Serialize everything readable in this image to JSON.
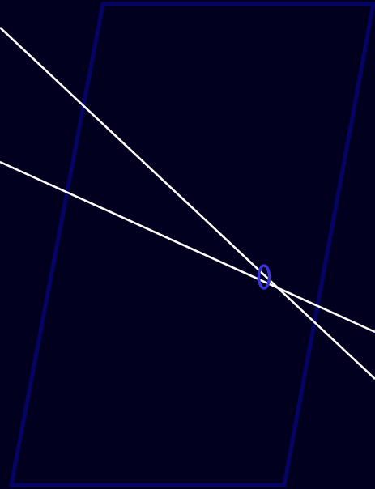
{
  "scene": {
    "background_color": "#02001f",
    "panel_border_color": "#050465",
    "line_color": "#ffffff",
    "marker_color": "#3a33d6"
  }
}
